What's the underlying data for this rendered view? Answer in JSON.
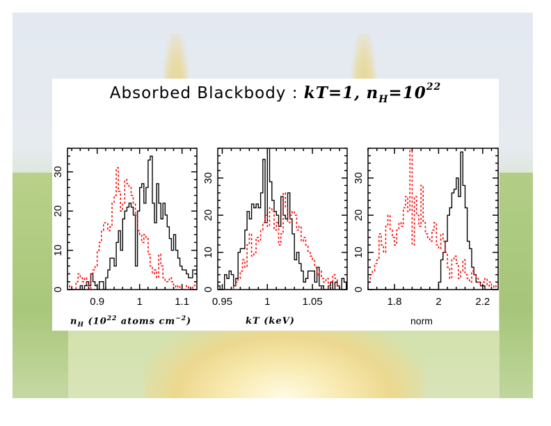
{
  "title": {
    "prefix": "Absorbed Blackbody : ",
    "kt": "kT=1,",
    "nh": "n",
    "nh_sub": "H",
    "eq": "=10",
    "exp": "22"
  },
  "colors": {
    "hist_primary": "#000000",
    "hist_secondary": "#ff0000",
    "panel": "#ffffff"
  },
  "chart_data": [
    {
      "type": "line",
      "subtype": "step-histogram",
      "xlabel": "n_H (10^22 atoms cm^-2)",
      "xlabel_parts": {
        "main": "n",
        "sub": "H",
        "rest": " (10",
        "sup": "22",
        "tail": " atoms cm",
        "sup2": "−2",
        "close": ")"
      },
      "ylabel": "",
      "xlim": [
        0.83,
        1.135
      ],
      "ylim": [
        0,
        36
      ],
      "xticks": [
        0.9,
        1.0,
        1.1
      ],
      "xtick_labels": [
        "0.9",
        "1",
        "1.1"
      ],
      "yticks": [
        0,
        10,
        20,
        30
      ],
      "ytick_labels": [
        "0",
        "10",
        "20",
        "30"
      ],
      "series": [
        {
          "name": "black",
          "color": "#000000",
          "style": "solid",
          "x_start": 0.83,
          "bin_width": 0.005,
          "values": [
            0,
            0,
            0,
            0,
            0,
            0,
            1,
            0,
            1,
            2,
            1,
            4,
            2,
            1,
            0,
            2,
            2,
            0,
            3,
            5,
            8,
            8,
            6,
            12,
            15,
            10,
            18,
            20,
            21,
            22,
            21,
            19,
            6,
            20,
            26,
            27,
            22,
            26,
            33,
            34,
            22,
            17,
            27,
            22,
            18,
            22,
            19,
            16,
            13,
            10,
            14,
            10,
            8,
            6,
            5,
            5,
            4,
            3,
            3,
            5,
            5,
            3,
            1,
            1,
            0,
            1,
            2,
            0
          ],
          "bin_heights_extra": []
        },
        {
          "name": "red",
          "color": "#ff0000",
          "style": "dotted",
          "x_start": 0.83,
          "bin_width": 0.005,
          "values": [
            0,
            1,
            0,
            0,
            2,
            4,
            3,
            2,
            3,
            1,
            0,
            4,
            5,
            6,
            10,
            12,
            15,
            17,
            17,
            15,
            16,
            22,
            24,
            31,
            25,
            20,
            22,
            28,
            27,
            26,
            24,
            22,
            19,
            15,
            14,
            12,
            14,
            13,
            9,
            6,
            4,
            5,
            3,
            9,
            6,
            3,
            2,
            2,
            3,
            2,
            1,
            0,
            1,
            0,
            0,
            0,
            1,
            0,
            0,
            1,
            2,
            1,
            0,
            1,
            0,
            0,
            0,
            0
          ]
        }
      ]
    },
    {
      "type": "line",
      "subtype": "step-histogram",
      "xlabel": "kT (keV)",
      "xlim": [
        0.945,
        1.0885
      ],
      "ylim": [
        0,
        38
      ],
      "xticks": [
        0.95,
        1.0,
        1.05
      ],
      "xtick_labels": [
        "0.95",
        "1",
        "1.05"
      ],
      "yticks": [
        0,
        10,
        20,
        30
      ],
      "ytick_labels": [
        "0",
        "10",
        "20",
        "30"
      ],
      "series": [
        {
          "name": "black",
          "color": "#000000",
          "style": "solid",
          "x_start": 0.945,
          "bin_width": 0.0025,
          "values": [
            1,
            0,
            0,
            4,
            3,
            5,
            4,
            1,
            3,
            10,
            11,
            11,
            16,
            21,
            19,
            23,
            22,
            23,
            22,
            26,
            35,
            18,
            38,
            29,
            24,
            21,
            20,
            17,
            25,
            20,
            19,
            26,
            19,
            15,
            8,
            10,
            7,
            5,
            2,
            3,
            5,
            5,
            5,
            2,
            6,
            1,
            1,
            0,
            0,
            1,
            2,
            0,
            2,
            1,
            0,
            3,
            2,
            0,
            0
          ]
        },
        {
          "name": "red",
          "color": "#ff0000",
          "style": "dotted",
          "x_start": 0.945,
          "bin_width": 0.0025,
          "values": [
            0,
            0,
            0,
            0,
            0,
            0,
            0,
            1,
            2,
            3,
            5,
            8,
            6,
            12,
            15,
            9,
            10,
            14,
            13,
            16,
            18,
            20,
            17,
            22,
            21,
            16,
            18,
            12,
            15,
            26,
            22,
            18,
            20,
            21,
            20,
            16,
            17,
            13,
            14,
            12,
            10,
            9,
            8,
            6,
            4,
            5,
            3,
            2,
            3,
            1,
            2,
            4,
            3,
            1,
            0,
            0,
            0,
            0,
            0
          ]
        }
      ]
    },
    {
      "type": "line",
      "subtype": "step-histogram",
      "xlabel": "norm",
      "xlim": [
        1.68,
        2.27
      ],
      "ylim": [
        0,
        38
      ],
      "xticks": [
        1.8,
        2.0,
        2.2
      ],
      "xtick_labels": [
        "1.8",
        "2",
        "2.2"
      ],
      "yticks": [
        0,
        10,
        20,
        30
      ],
      "ytick_labels": [
        "0",
        "10",
        "20",
        "30"
      ],
      "series": [
        {
          "name": "black",
          "color": "#000000",
          "style": "solid",
          "x_start": 1.68,
          "bin_width": 0.01,
          "values": [
            0,
            0,
            0,
            0,
            0,
            0,
            0,
            0,
            0,
            0,
            0,
            0,
            0,
            0,
            0,
            0,
            0,
            0,
            0,
            0,
            0,
            0,
            0,
            0,
            0,
            0,
            0,
            0,
            0,
            0,
            0,
            0,
            2,
            8,
            10,
            13,
            20,
            22,
            26,
            27,
            30,
            25,
            37,
            28,
            22,
            13,
            11,
            6,
            4,
            2,
            2,
            1,
            1,
            0,
            0,
            0,
            0,
            0,
            0
          ]
        },
        {
          "name": "red",
          "color": "#ff0000",
          "style": "dotted",
          "x_start": 1.68,
          "bin_width": 0.01,
          "values": [
            2,
            4,
            5,
            7,
            8,
            15,
            12,
            10,
            17,
            20,
            16,
            14,
            12,
            16,
            18,
            17,
            22,
            25,
            21,
            38,
            12,
            25,
            20,
            17,
            28,
            18,
            15,
            14,
            13,
            16,
            18,
            12,
            11,
            15,
            13,
            10,
            6,
            3,
            8,
            9,
            7,
            3,
            5,
            8,
            4,
            3,
            2,
            5,
            4,
            3,
            2,
            1,
            2,
            3,
            1,
            2,
            1,
            0,
            1
          ]
        }
      ]
    }
  ]
}
